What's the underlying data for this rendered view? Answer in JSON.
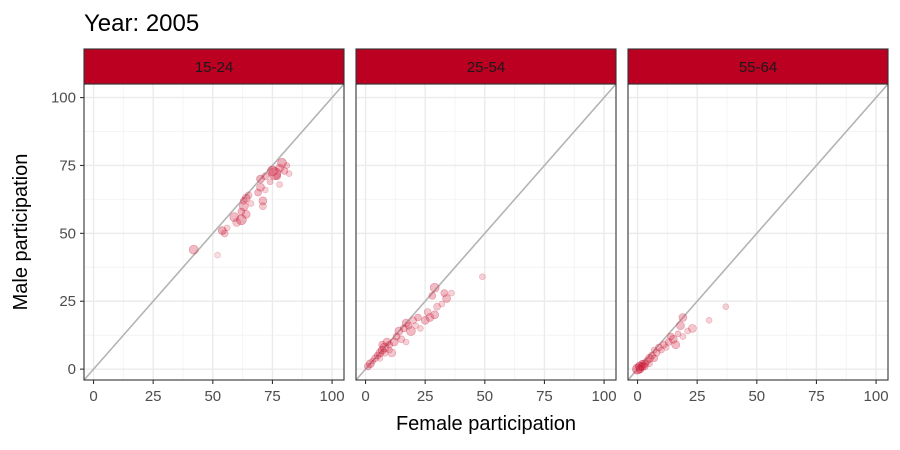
{
  "chart_data": {
    "type": "scatter",
    "title": "Year: 2005",
    "xlabel": "Female participation",
    "ylabel": "Male participation",
    "xlim": [
      -4,
      105
    ],
    "ylim": [
      -4,
      105
    ],
    "xticks": [
      0,
      25,
      50,
      75,
      100
    ],
    "yticks": [
      0,
      25,
      50,
      75,
      100
    ],
    "grid": true,
    "reference_line": "y = x",
    "colors": {
      "strip": "#bb0021",
      "point": "#cc1f3d",
      "refline": "#b3b3b3",
      "panel_border": "#333333",
      "grid_major": "#ebebeb",
      "grid_minor": "#f4f4f4"
    },
    "panels": [
      {
        "label": "15-24",
        "points": [
          {
            "x": 42,
            "y": 44,
            "size": 4.5,
            "alpha": 0.3
          },
          {
            "x": 52,
            "y": 42,
            "size": 3.0,
            "alpha": 0.15
          },
          {
            "x": 54,
            "y": 51,
            "size": 4.0,
            "alpha": 0.35
          },
          {
            "x": 55,
            "y": 50,
            "size": 3.5,
            "alpha": 0.25
          },
          {
            "x": 56,
            "y": 52,
            "size": 3.0,
            "alpha": 0.2
          },
          {
            "x": 59,
            "y": 56,
            "size": 4.5,
            "alpha": 0.3
          },
          {
            "x": 60,
            "y": 54,
            "size": 4.0,
            "alpha": 0.25
          },
          {
            "x": 62,
            "y": 55,
            "size": 5.0,
            "alpha": 0.35
          },
          {
            "x": 62,
            "y": 58,
            "size": 3.5,
            "alpha": 0.3
          },
          {
            "x": 63,
            "y": 60,
            "size": 4.5,
            "alpha": 0.3
          },
          {
            "x": 63,
            "y": 62,
            "size": 3.5,
            "alpha": 0.3
          },
          {
            "x": 64,
            "y": 63,
            "size": 4.0,
            "alpha": 0.3
          },
          {
            "x": 64,
            "y": 57,
            "size": 4.0,
            "alpha": 0.3
          },
          {
            "x": 65,
            "y": 64,
            "size": 3.5,
            "alpha": 0.25
          },
          {
            "x": 66,
            "y": 61,
            "size": 3.0,
            "alpha": 0.2
          },
          {
            "x": 69,
            "y": 65,
            "size": 3.5,
            "alpha": 0.3
          },
          {
            "x": 70,
            "y": 67,
            "size": 4.0,
            "alpha": 0.3
          },
          {
            "x": 70,
            "y": 70,
            "size": 4.0,
            "alpha": 0.35
          },
          {
            "x": 71,
            "y": 62,
            "size": 4.0,
            "alpha": 0.3
          },
          {
            "x": 71,
            "y": 60,
            "size": 3.5,
            "alpha": 0.25
          },
          {
            "x": 72,
            "y": 66,
            "size": 3.0,
            "alpha": 0.2
          },
          {
            "x": 72,
            "y": 71,
            "size": 3.5,
            "alpha": 0.3
          },
          {
            "x": 74,
            "y": 69,
            "size": 3.0,
            "alpha": 0.25
          },
          {
            "x": 75,
            "y": 73,
            "size": 5.0,
            "alpha": 0.35
          },
          {
            "x": 76,
            "y": 72,
            "size": 6.0,
            "alpha": 0.4
          },
          {
            "x": 77,
            "y": 71,
            "size": 3.5,
            "alpha": 0.3
          },
          {
            "x": 78,
            "y": 74,
            "size": 4.0,
            "alpha": 0.3
          },
          {
            "x": 78,
            "y": 68,
            "size": 3.0,
            "alpha": 0.2
          },
          {
            "x": 79,
            "y": 76,
            "size": 4.5,
            "alpha": 0.35
          },
          {
            "x": 80,
            "y": 73,
            "size": 3.5,
            "alpha": 0.3
          },
          {
            "x": 81,
            "y": 75,
            "size": 3.0,
            "alpha": 0.25
          },
          {
            "x": 82,
            "y": 72,
            "size": 3.0,
            "alpha": 0.2
          }
        ]
      },
      {
        "label": "25-54",
        "points": [
          {
            "x": 1,
            "y": 1,
            "size": 3.5,
            "alpha": 0.3
          },
          {
            "x": 2,
            "y": 2,
            "size": 4.0,
            "alpha": 0.35
          },
          {
            "x": 3,
            "y": 3,
            "size": 3.0,
            "alpha": 0.25
          },
          {
            "x": 4,
            "y": 4,
            "size": 3.5,
            "alpha": 0.3
          },
          {
            "x": 5,
            "y": 5,
            "size": 3.5,
            "alpha": 0.3
          },
          {
            "x": 6,
            "y": 6,
            "size": 4.0,
            "alpha": 0.3
          },
          {
            "x": 6,
            "y": 4,
            "size": 3.0,
            "alpha": 0.2
          },
          {
            "x": 7,
            "y": 7,
            "size": 4.0,
            "alpha": 0.35
          },
          {
            "x": 7,
            "y": 9,
            "size": 3.5,
            "alpha": 0.3
          },
          {
            "x": 8,
            "y": 6,
            "size": 3.5,
            "alpha": 0.25
          },
          {
            "x": 8,
            "y": 8,
            "size": 4.5,
            "alpha": 0.3
          },
          {
            "x": 9,
            "y": 10,
            "size": 4.0,
            "alpha": 0.3
          },
          {
            "x": 10,
            "y": 9,
            "size": 3.5,
            "alpha": 0.3
          },
          {
            "x": 10,
            "y": 7,
            "size": 3.0,
            "alpha": 0.2
          },
          {
            "x": 11,
            "y": 6,
            "size": 4.0,
            "alpha": 0.25
          },
          {
            "x": 12,
            "y": 10,
            "size": 4.0,
            "alpha": 0.3
          },
          {
            "x": 13,
            "y": 12,
            "size": 3.5,
            "alpha": 0.3
          },
          {
            "x": 14,
            "y": 14,
            "size": 4.0,
            "alpha": 0.3
          },
          {
            "x": 15,
            "y": 11,
            "size": 3.5,
            "alpha": 0.25
          },
          {
            "x": 16,
            "y": 15,
            "size": 3.5,
            "alpha": 0.3
          },
          {
            "x": 17,
            "y": 17,
            "size": 4.0,
            "alpha": 0.3
          },
          {
            "x": 17,
            "y": 10,
            "size": 3.0,
            "alpha": 0.2
          },
          {
            "x": 18,
            "y": 16,
            "size": 3.5,
            "alpha": 0.3
          },
          {
            "x": 19,
            "y": 14,
            "size": 4.5,
            "alpha": 0.3
          },
          {
            "x": 20,
            "y": 18,
            "size": 3.5,
            "alpha": 0.25
          },
          {
            "x": 21,
            "y": 16,
            "size": 3.0,
            "alpha": 0.2
          },
          {
            "x": 22,
            "y": 19,
            "size": 3.5,
            "alpha": 0.3
          },
          {
            "x": 23,
            "y": 15,
            "size": 3.0,
            "alpha": 0.2
          },
          {
            "x": 25,
            "y": 18,
            "size": 4.0,
            "alpha": 0.3
          },
          {
            "x": 26,
            "y": 21,
            "size": 3.5,
            "alpha": 0.25
          },
          {
            "x": 27,
            "y": 19,
            "size": 4.0,
            "alpha": 0.3
          },
          {
            "x": 28,
            "y": 27,
            "size": 3.5,
            "alpha": 0.3
          },
          {
            "x": 29,
            "y": 30,
            "size": 4.5,
            "alpha": 0.3
          },
          {
            "x": 29,
            "y": 20,
            "size": 4.0,
            "alpha": 0.3
          },
          {
            "x": 30,
            "y": 23,
            "size": 3.5,
            "alpha": 0.25
          },
          {
            "x": 32,
            "y": 24,
            "size": 3.0,
            "alpha": 0.2
          },
          {
            "x": 33,
            "y": 28,
            "size": 3.5,
            "alpha": 0.3
          },
          {
            "x": 34,
            "y": 26,
            "size": 4.0,
            "alpha": 0.3
          },
          {
            "x": 36,
            "y": 28,
            "size": 3.0,
            "alpha": 0.2
          },
          {
            "x": 49,
            "y": 34,
            "size": 3.0,
            "alpha": 0.2
          }
        ]
      },
      {
        "label": "55-64",
        "points": [
          {
            "x": 0,
            "y": 0,
            "size": 5.0,
            "alpha": 0.45
          },
          {
            "x": 1,
            "y": 1,
            "size": 4.5,
            "alpha": 0.45
          },
          {
            "x": 1,
            "y": 0,
            "size": 4.0,
            "alpha": 0.4
          },
          {
            "x": 2,
            "y": 1,
            "size": 4.0,
            "alpha": 0.4
          },
          {
            "x": 2,
            "y": 2,
            "size": 3.5,
            "alpha": 0.35
          },
          {
            "x": 3,
            "y": 2,
            "size": 4.0,
            "alpha": 0.35
          },
          {
            "x": 3,
            "y": 1,
            "size": 3.5,
            "alpha": 0.3
          },
          {
            "x": 4,
            "y": 3,
            "size": 3.5,
            "alpha": 0.3
          },
          {
            "x": 5,
            "y": 4,
            "size": 4.0,
            "alpha": 0.35
          },
          {
            "x": 5,
            "y": 2,
            "size": 3.0,
            "alpha": 0.25
          },
          {
            "x": 6,
            "y": 5,
            "size": 3.5,
            "alpha": 0.3
          },
          {
            "x": 7,
            "y": 4,
            "size": 3.5,
            "alpha": 0.3
          },
          {
            "x": 7,
            "y": 7,
            "size": 3.0,
            "alpha": 0.25
          },
          {
            "x": 8,
            "y": 6,
            "size": 3.5,
            "alpha": 0.3
          },
          {
            "x": 9,
            "y": 8,
            "size": 3.5,
            "alpha": 0.3
          },
          {
            "x": 10,
            "y": 7,
            "size": 3.0,
            "alpha": 0.25
          },
          {
            "x": 11,
            "y": 9,
            "size": 3.5,
            "alpha": 0.3
          },
          {
            "x": 12,
            "y": 8,
            "size": 3.0,
            "alpha": 0.2
          },
          {
            "x": 13,
            "y": 10,
            "size": 3.5,
            "alpha": 0.3
          },
          {
            "x": 14,
            "y": 12,
            "size": 3.5,
            "alpha": 0.3
          },
          {
            "x": 15,
            "y": 11,
            "size": 4.0,
            "alpha": 0.3
          },
          {
            "x": 16,
            "y": 9,
            "size": 4.0,
            "alpha": 0.3
          },
          {
            "x": 17,
            "y": 13,
            "size": 3.0,
            "alpha": 0.25
          },
          {
            "x": 18,
            "y": 16,
            "size": 4.0,
            "alpha": 0.3
          },
          {
            "x": 19,
            "y": 19,
            "size": 4.0,
            "alpha": 0.3
          },
          {
            "x": 19,
            "y": 12,
            "size": 3.0,
            "alpha": 0.2
          },
          {
            "x": 21,
            "y": 14,
            "size": 3.0,
            "alpha": 0.2
          },
          {
            "x": 23,
            "y": 15,
            "size": 4.0,
            "alpha": 0.25
          },
          {
            "x": 30,
            "y": 18,
            "size": 3.0,
            "alpha": 0.2
          },
          {
            "x": 37,
            "y": 23,
            "size": 3.0,
            "alpha": 0.2
          }
        ]
      }
    ]
  }
}
